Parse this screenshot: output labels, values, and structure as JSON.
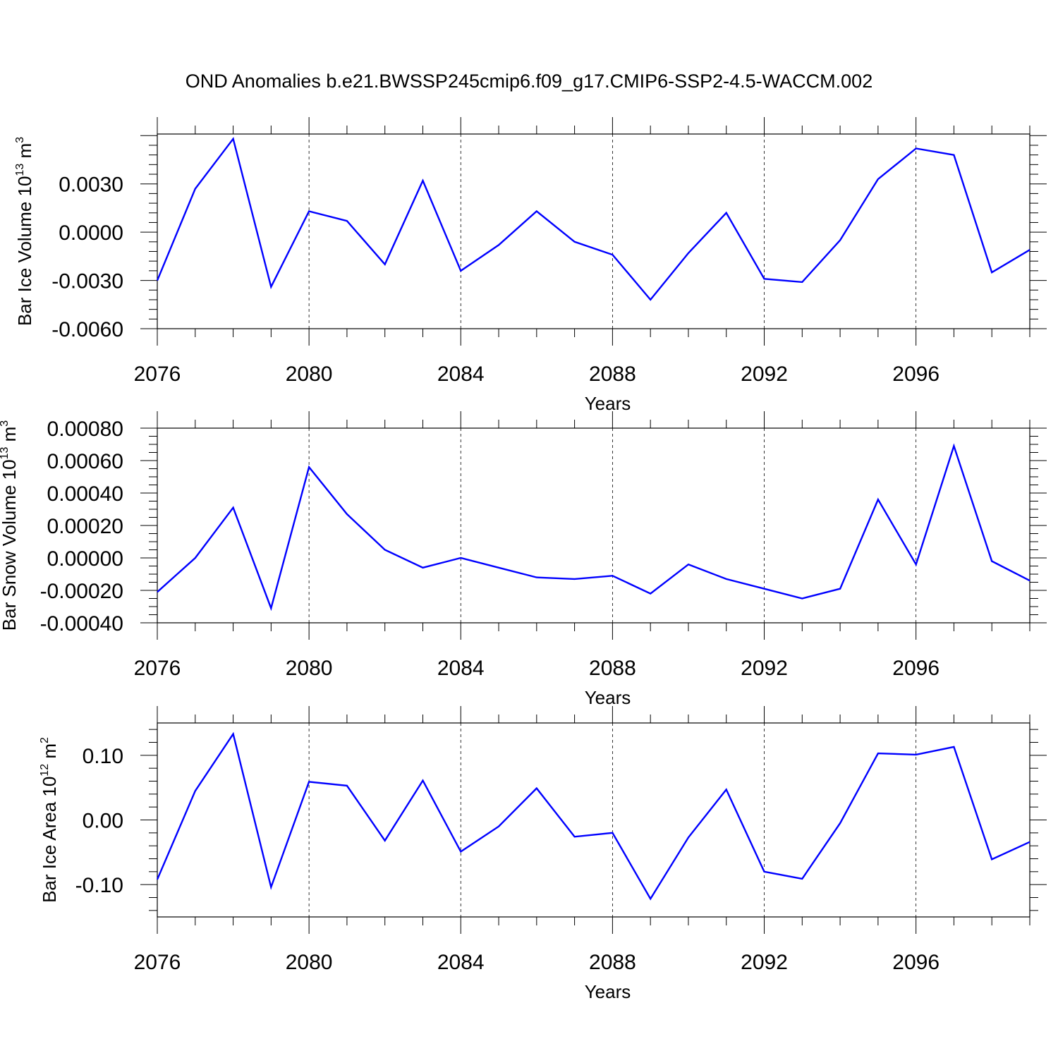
{
  "title": "OND Anomalies b.e21.BWSSP245cmip6.f09_g17.CMIP6-SSP2-4.5-WACCM.002",
  "line_color": "#0000ff",
  "chart_data": [
    {
      "type": "line",
      "ylabel": "Bar Ice Volume 10",
      "ylabel_sup": "13",
      "ylabel_unit": " m",
      "ylabel_unit_sup": "3",
      "xlabel": "Years",
      "xlim": [
        2076,
        2099
      ],
      "ylim": [
        -0.006,
        0.0061
      ],
      "yticks": [
        -0.006,
        -0.003,
        0.0,
        0.003
      ],
      "ytick_labels": [
        "-0.0060",
        "-0.0030",
        "0.0000",
        "0.0030"
      ],
      "xticks": [
        2076,
        2080,
        2084,
        2088,
        2092,
        2096
      ],
      "xtick_labels": [
        "2076",
        "2080",
        "2084",
        "2088",
        "2092",
        "2096"
      ],
      "x": [
        2076,
        2077,
        2078,
        2079,
        2080,
        2081,
        2082,
        2083,
        2084,
        2085,
        2086,
        2087,
        2088,
        2089,
        2090,
        2091,
        2092,
        2093,
        2094,
        2095,
        2096,
        2097,
        2098,
        2099
      ],
      "series": [
        {
          "values": [
            -0.003,
            0.0027,
            0.0058,
            -0.0034,
            0.0013,
            0.0007,
            -0.002,
            0.0032,
            -0.0024,
            -0.0008,
            0.0013,
            -0.0006,
            -0.0014,
            -0.0042,
            -0.0013,
            0.0012,
            -0.0029,
            -0.0031,
            -0.0005,
            0.0033,
            0.0052,
            0.0048,
            -0.0025,
            -0.0011
          ]
        }
      ],
      "grid": "vertical dashed at major x ticks"
    },
    {
      "type": "line",
      "ylabel": "Bar Snow Volume 10",
      "ylabel_sup": "13",
      "ylabel_unit": " m",
      "ylabel_unit_sup": "3",
      "xlabel": "Years",
      "xlim": [
        2076,
        2099
      ],
      "ylim": [
        -0.0004,
        0.0008
      ],
      "yticks": [
        -0.0004,
        -0.0002,
        0.0,
        0.0002,
        0.0004,
        0.0006,
        0.0008
      ],
      "ytick_labels": [
        "-0.00040",
        "-0.00020",
        "0.00000",
        "0.00020",
        "0.00040",
        "0.00060",
        "0.00080"
      ],
      "xticks": [
        2076,
        2080,
        2084,
        2088,
        2092,
        2096
      ],
      "xtick_labels": [
        "2076",
        "2080",
        "2084",
        "2088",
        "2092",
        "2096"
      ],
      "x": [
        2076,
        2077,
        2078,
        2079,
        2080,
        2081,
        2082,
        2083,
        2084,
        2085,
        2086,
        2087,
        2088,
        2089,
        2090,
        2091,
        2092,
        2093,
        2094,
        2095,
        2096,
        2097,
        2098,
        2099
      ],
      "series": [
        {
          "values": [
            -0.00021,
            0.0,
            0.00031,
            -0.00031,
            0.00056,
            0.00027,
            5e-05,
            -6e-05,
            0.0,
            -6e-05,
            -0.00012,
            -0.00013,
            -0.00011,
            -0.00022,
            -4e-05,
            -0.00013,
            -0.00019,
            -0.00025,
            -0.00019,
            0.00036,
            -4e-05,
            0.00069,
            -2e-05,
            -0.00014
          ]
        }
      ],
      "grid": "vertical dashed at major x ticks"
    },
    {
      "type": "line",
      "ylabel": "Bar Ice Area 10",
      "ylabel_sup": "12",
      "ylabel_unit": " m",
      "ylabel_unit_sup": "2",
      "xlabel": "Years",
      "xlim": [
        2076,
        2099
      ],
      "ylim": [
        -0.15,
        0.15
      ],
      "yticks": [
        -0.1,
        0.0,
        0.1
      ],
      "ytick_labels": [
        "-0.10",
        "0.00",
        "0.10"
      ],
      "xticks": [
        2076,
        2080,
        2084,
        2088,
        2092,
        2096
      ],
      "xtick_labels": [
        "2076",
        "2080",
        "2084",
        "2088",
        "2092",
        "2096"
      ],
      "x": [
        2076,
        2077,
        2078,
        2079,
        2080,
        2081,
        2082,
        2083,
        2084,
        2085,
        2086,
        2087,
        2088,
        2089,
        2090,
        2091,
        2092,
        2093,
        2094,
        2095,
        2096,
        2097,
        2098,
        2099
      ],
      "series": [
        {
          "values": [
            -0.092,
            0.045,
            0.133,
            -0.104,
            0.059,
            0.053,
            -0.032,
            0.061,
            -0.049,
            -0.01,
            0.049,
            -0.026,
            -0.02,
            -0.122,
            -0.027,
            0.047,
            -0.08,
            -0.091,
            -0.005,
            0.103,
            0.101,
            0.113,
            -0.061,
            -0.034
          ]
        }
      ],
      "grid": "vertical dashed at major x ticks"
    }
  ]
}
